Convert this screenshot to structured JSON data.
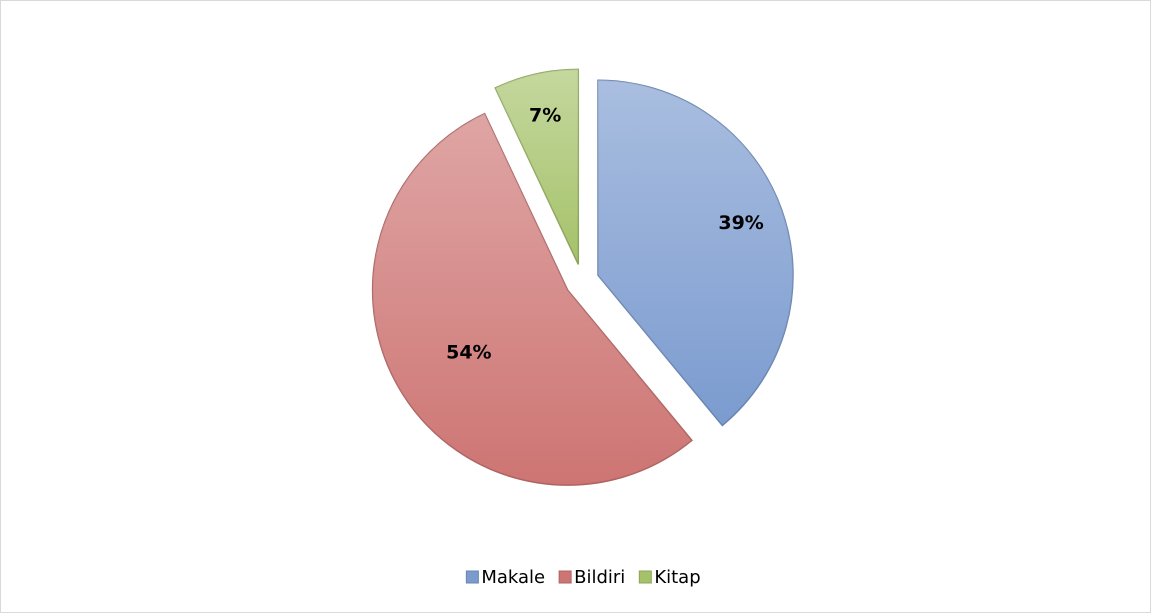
{
  "chart_data": {
    "type": "pie",
    "categories": [
      "Makale",
      "Bildiri",
      "Kitap"
    ],
    "values": [
      39,
      54,
      7
    ],
    "value_labels": [
      "39%",
      "54%",
      "7%"
    ],
    "colors": [
      "#7b9bcf",
      "#cd7573",
      "#a5c26a"
    ],
    "legend": "bottom"
  }
}
